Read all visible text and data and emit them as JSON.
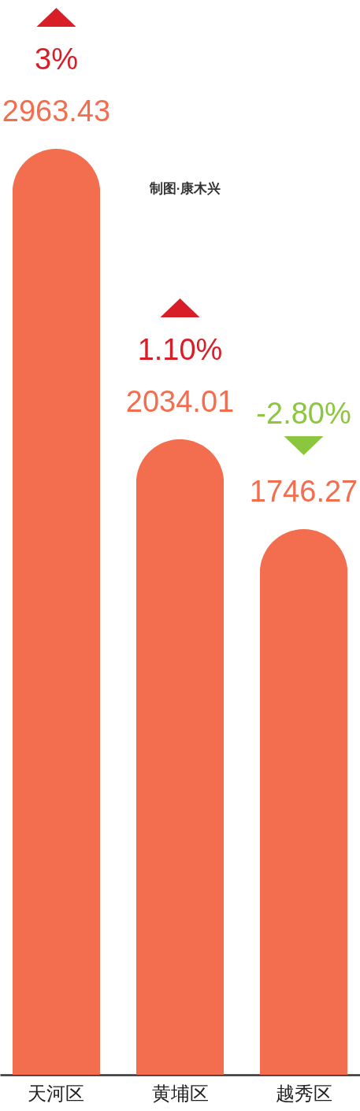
{
  "chart_data": {
    "type": "bar",
    "categories": [
      "天河区",
      "黄埔区",
      "越秀区"
    ],
    "values": [
      2963.43,
      2034.01,
      1746.27
    ],
    "color": "#f26e4e",
    "data_labels": true,
    "ylim": [
      0,
      3440
    ],
    "tick_labels": "x",
    "annotations": [
      "3%",
      "1.10%",
      "-2.80%",
      "制图·康木兴"
    ]
  }
}
